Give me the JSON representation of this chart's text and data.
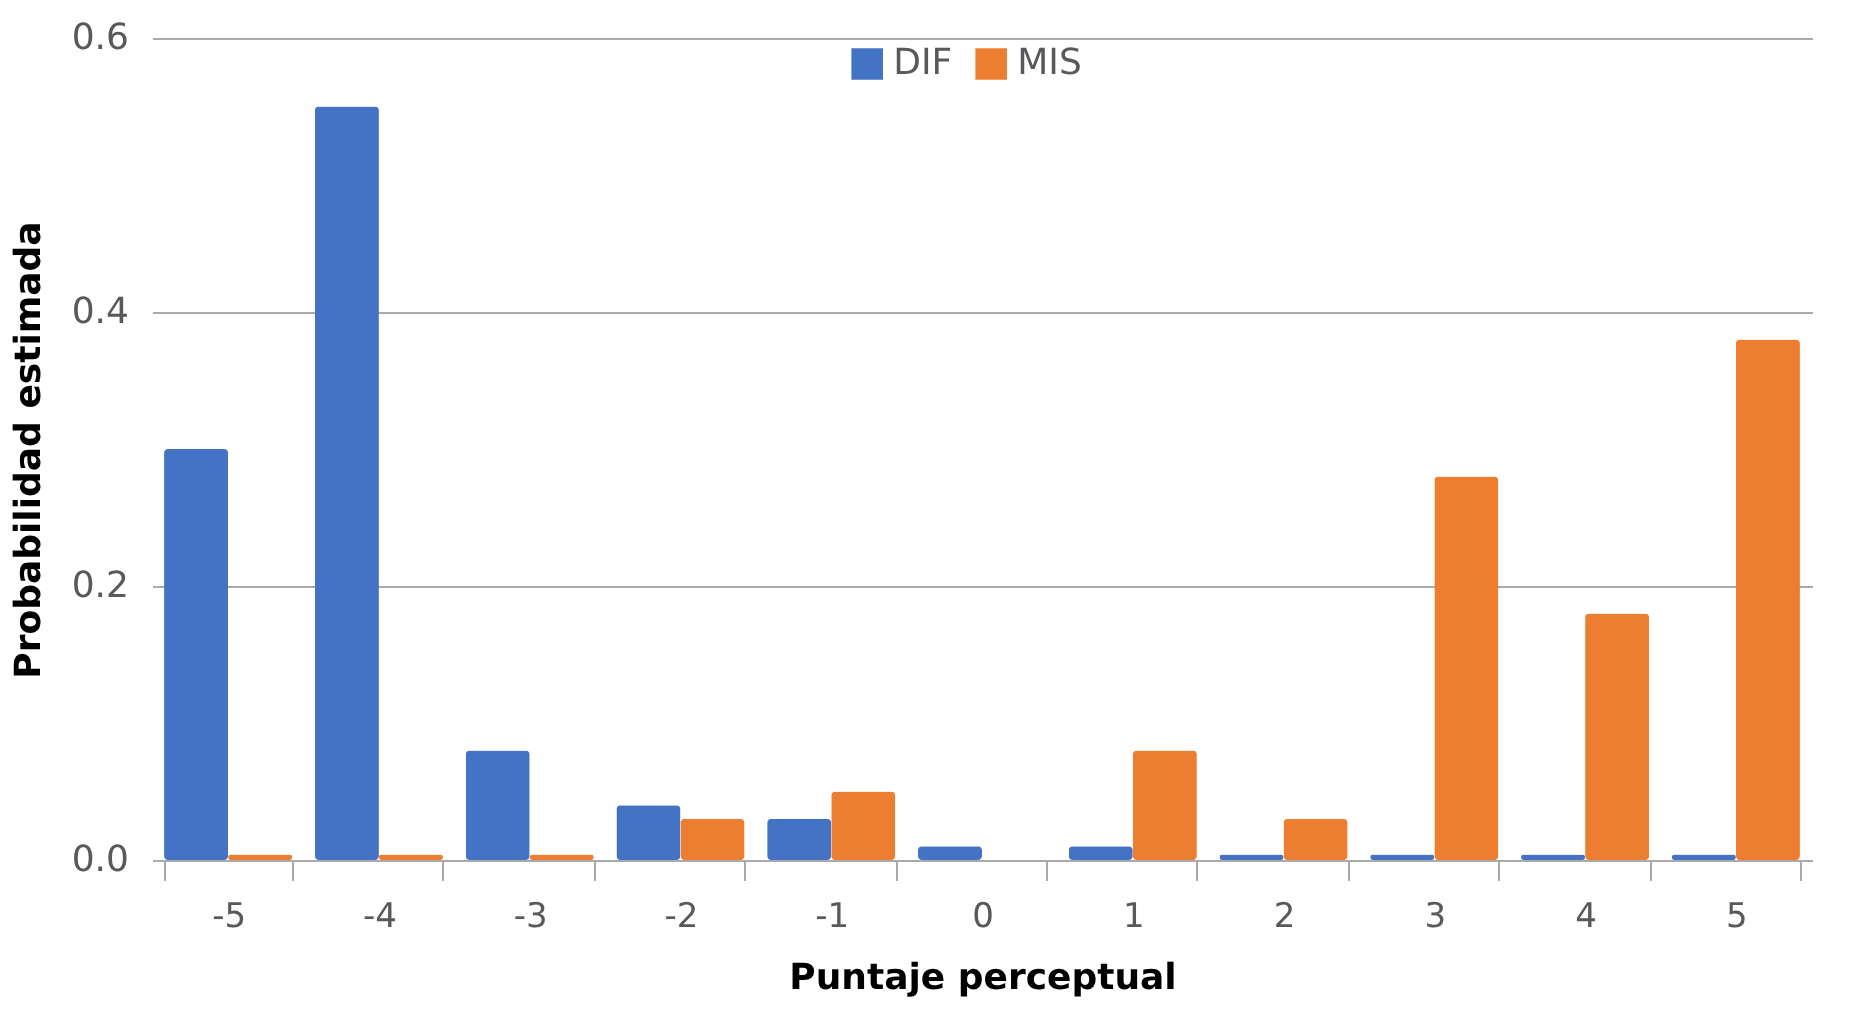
{
  "chart_data": {
    "type": "bar",
    "xlabel": "Puntaje perceptual",
    "ylabel": "Probabilidad  estimada",
    "categories": [
      "-5",
      "-4",
      "-3",
      "-2",
      "-1",
      "0",
      "1",
      "2",
      "3",
      "4",
      "5"
    ],
    "series": [
      {
        "name": "DIF",
        "color": "#4472c4",
        "values": [
          0.3,
          0.55,
          0.08,
          0.04,
          0.03,
          0.01,
          0.01,
          0.004,
          0.004,
          0.004,
          0.004
        ]
      },
      {
        "name": "MIS",
        "color": "#ed7d31",
        "values": [
          0.004,
          0.004,
          0.004,
          0.03,
          0.05,
          0,
          0.08,
          0.03,
          0.28,
          0.18,
          0.38
        ]
      }
    ],
    "ylim": [
      0,
      0.6
    ],
    "yticks": [
      {
        "value": 0,
        "label": "0.0"
      },
      0.2,
      0.4,
      0.6
    ],
    "grid": "y",
    "legend": "top"
  }
}
